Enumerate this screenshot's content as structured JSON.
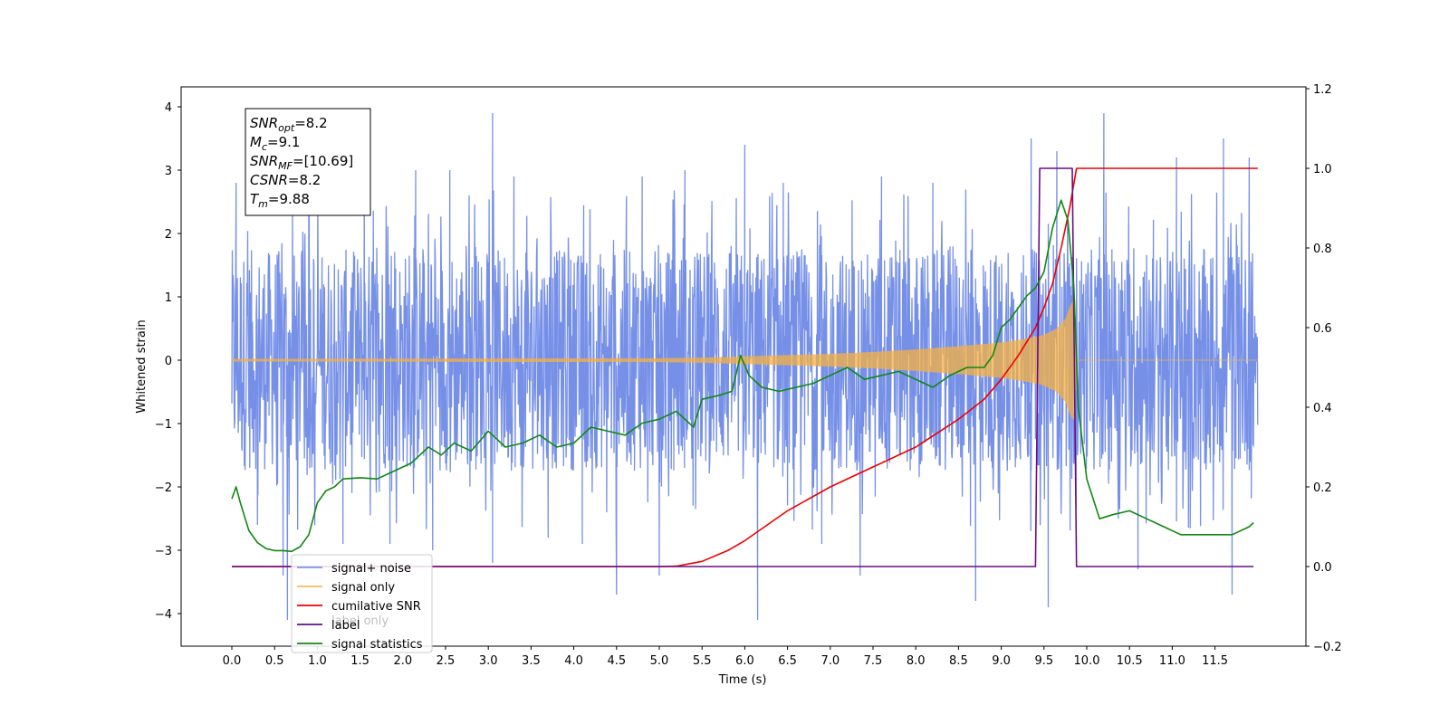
{
  "chart_data": {
    "type": "line",
    "xlabel": "Time (s)",
    "ylabel": "Whitened strain",
    "xlim": [
      -0.6,
      12.6
    ],
    "ylim": [
      -4.5,
      4.3
    ],
    "ylim_right": [
      -0.2,
      1.2
    ],
    "x_ticks": [
      "0.0",
      "0.5",
      "1.0",
      "1.5",
      "2.0",
      "2.5",
      "3.0",
      "3.5",
      "4.0",
      "4.5",
      "5.0",
      "5.5",
      "6.0",
      "6.5",
      "7.0",
      "7.5",
      "8.0",
      "8.5",
      "9.0",
      "9.5",
      "10.0",
      "10.5",
      "11.0",
      "11.5"
    ],
    "y_ticks_left": [
      "4",
      "3",
      "2",
      "1",
      "0",
      "−1",
      "−2",
      "−3",
      "−4"
    ],
    "y_ticks_right": [
      "1.2",
      "1.0",
      "0.8",
      "0.6",
      "0.4",
      "0.2",
      "0.0",
      "−0.2"
    ],
    "legend_position": "lower-left",
    "annotation": {
      "lines": [
        {
          "sym": "SNR",
          "sub": "opt",
          "val": "=8.2"
        },
        {
          "sym": "M",
          "sub": "c",
          "val": "=9.1"
        },
        {
          "sym": "SNR",
          "sub": "MF",
          "val": "=[10.69]"
        },
        {
          "sym": "CSNR",
          "sub": "",
          "val": "=8.2"
        },
        {
          "sym": "T",
          "sub": "m",
          "val": "=9.88"
        }
      ]
    },
    "series": [
      {
        "name": "signal+ noise",
        "color": "#6a87e6",
        "axis": "left",
        "band_lower_approx": -1.9,
        "band_upper_approx": 1.9,
        "spikes": [
          [
            0.05,
            2.8
          ],
          [
            0.3,
            -2.6
          ],
          [
            0.6,
            -3.4
          ],
          [
            0.65,
            -4.1
          ],
          [
            0.9,
            2.9
          ],
          [
            1.3,
            -2.9
          ],
          [
            1.55,
            3.0
          ],
          [
            1.85,
            -2.9
          ],
          [
            2.15,
            3.0
          ],
          [
            2.35,
            -3.0
          ],
          [
            2.55,
            3.0
          ],
          [
            3.05,
            3.9
          ],
          [
            3.05,
            -3.2
          ],
          [
            3.3,
            2.9
          ],
          [
            3.7,
            -2.8
          ],
          [
            4.1,
            -2.9
          ],
          [
            4.5,
            -3.7
          ],
          [
            4.8,
            2.9
          ],
          [
            5.0,
            -3.4
          ],
          [
            5.3,
            3.0
          ],
          [
            6.0,
            3.4
          ],
          [
            6.15,
            -4.1
          ],
          [
            6.45,
            2.8
          ],
          [
            6.9,
            -2.9
          ],
          [
            7.35,
            -3.4
          ],
          [
            7.6,
            2.9
          ],
          [
            8.2,
            2.8
          ],
          [
            8.7,
            -3.8
          ],
          [
            9.35,
            3.5
          ],
          [
            9.55,
            -3.9
          ],
          [
            9.65,
            3.3
          ],
          [
            10.2,
            3.9
          ],
          [
            10.6,
            -3.3
          ],
          [
            11.05,
            3.2
          ],
          [
            11.6,
            3.5
          ],
          [
            11.7,
            -3.7
          ],
          [
            11.9,
            3.2
          ]
        ]
      },
      {
        "name": "signal only",
        "color": "#f5b041",
        "axis": "left",
        "envelope": [
          [
            0.0,
            0.02
          ],
          [
            5.0,
            0.03
          ],
          [
            5.5,
            0.04
          ],
          [
            6.0,
            0.06
          ],
          [
            6.5,
            0.08
          ],
          [
            7.0,
            0.1
          ],
          [
            7.5,
            0.13
          ],
          [
            8.0,
            0.17
          ],
          [
            8.5,
            0.22
          ],
          [
            9.0,
            0.28
          ],
          [
            9.3,
            0.34
          ],
          [
            9.5,
            0.4
          ],
          [
            9.65,
            0.5
          ],
          [
            9.75,
            0.65
          ],
          [
            9.82,
            0.9
          ],
          [
            9.86,
            0.95
          ],
          [
            9.88,
            0.0
          ],
          [
            12.0,
            0.0
          ]
        ]
      },
      {
        "name": "cumilative SNR",
        "color": "#ee0000",
        "axis": "right",
        "points": [
          [
            0.0,
            0.0
          ],
          [
            5.0,
            0.0
          ],
          [
            5.2,
            0.001
          ],
          [
            5.5,
            0.013
          ],
          [
            5.8,
            0.04
          ],
          [
            6.0,
            0.065
          ],
          [
            6.5,
            0.14
          ],
          [
            7.0,
            0.2
          ],
          [
            7.5,
            0.25
          ],
          [
            8.0,
            0.3
          ],
          [
            8.5,
            0.37
          ],
          [
            8.8,
            0.42
          ],
          [
            9.0,
            0.47
          ],
          [
            9.2,
            0.53
          ],
          [
            9.4,
            0.6
          ],
          [
            9.5,
            0.65
          ],
          [
            9.6,
            0.71
          ],
          [
            9.7,
            0.8
          ],
          [
            9.8,
            0.9
          ],
          [
            9.88,
            1.0
          ],
          [
            12.0,
            1.0
          ]
        ]
      },
      {
        "name": "label",
        "color": "#6a0d83",
        "axis": "right",
        "points": [
          [
            0.0,
            0.0
          ],
          [
            9.4,
            0.0
          ],
          [
            9.45,
            1.0
          ],
          [
            9.83,
            1.0
          ],
          [
            9.88,
            0.0
          ],
          [
            11.95,
            0.0
          ]
        ]
      },
      {
        "name": "signal statistics",
        "color": "#118811",
        "axis": "right",
        "points": [
          [
            0.0,
            0.17
          ],
          [
            0.05,
            0.2
          ],
          [
            0.1,
            0.16
          ],
          [
            0.2,
            0.09
          ],
          [
            0.3,
            0.06
          ],
          [
            0.4,
            0.045
          ],
          [
            0.5,
            0.04
          ],
          [
            0.6,
            0.04
          ],
          [
            0.7,
            0.038
          ],
          [
            0.8,
            0.05
          ],
          [
            0.9,
            0.08
          ],
          [
            1.0,
            0.16
          ],
          [
            1.1,
            0.19
          ],
          [
            1.2,
            0.2
          ],
          [
            1.3,
            0.22
          ],
          [
            1.5,
            0.223
          ],
          [
            1.7,
            0.22
          ],
          [
            1.9,
            0.24
          ],
          [
            2.1,
            0.26
          ],
          [
            2.3,
            0.3
          ],
          [
            2.45,
            0.28
          ],
          [
            2.6,
            0.31
          ],
          [
            2.8,
            0.29
          ],
          [
            3.0,
            0.34
          ],
          [
            3.2,
            0.3
          ],
          [
            3.4,
            0.31
          ],
          [
            3.6,
            0.33
          ],
          [
            3.8,
            0.3
          ],
          [
            4.0,
            0.31
          ],
          [
            4.2,
            0.35
          ],
          [
            4.4,
            0.34
          ],
          [
            4.6,
            0.33
          ],
          [
            4.8,
            0.36
          ],
          [
            5.0,
            0.37
          ],
          [
            5.2,
            0.39
          ],
          [
            5.4,
            0.35
          ],
          [
            5.5,
            0.42
          ],
          [
            5.7,
            0.43
          ],
          [
            5.85,
            0.44
          ],
          [
            5.95,
            0.53
          ],
          [
            6.05,
            0.48
          ],
          [
            6.2,
            0.45
          ],
          [
            6.4,
            0.44
          ],
          [
            6.6,
            0.45
          ],
          [
            6.8,
            0.46
          ],
          [
            7.0,
            0.48
          ],
          [
            7.2,
            0.5
          ],
          [
            7.4,
            0.47
          ],
          [
            7.6,
            0.48
          ],
          [
            7.8,
            0.49
          ],
          [
            8.0,
            0.47
          ],
          [
            8.2,
            0.45
          ],
          [
            8.4,
            0.48
          ],
          [
            8.6,
            0.5
          ],
          [
            8.8,
            0.5
          ],
          [
            8.9,
            0.53
          ],
          [
            9.0,
            0.6
          ],
          [
            9.1,
            0.62
          ],
          [
            9.2,
            0.65
          ],
          [
            9.3,
            0.68
          ],
          [
            9.4,
            0.7
          ],
          [
            9.5,
            0.74
          ],
          [
            9.6,
            0.85
          ],
          [
            9.7,
            0.92
          ],
          [
            9.78,
            0.87
          ],
          [
            9.85,
            0.7
          ],
          [
            9.9,
            0.4
          ],
          [
            10.0,
            0.22
          ],
          [
            10.15,
            0.12
          ],
          [
            10.3,
            0.13
          ],
          [
            10.5,
            0.14
          ],
          [
            10.7,
            0.12
          ],
          [
            10.9,
            0.1
          ],
          [
            11.1,
            0.08
          ],
          [
            11.3,
            0.08
          ],
          [
            11.5,
            0.08
          ],
          [
            11.7,
            0.08
          ],
          [
            11.9,
            0.1
          ],
          [
            11.95,
            0.11
          ]
        ]
      }
    ],
    "legend_overlap_text": "label only"
  }
}
